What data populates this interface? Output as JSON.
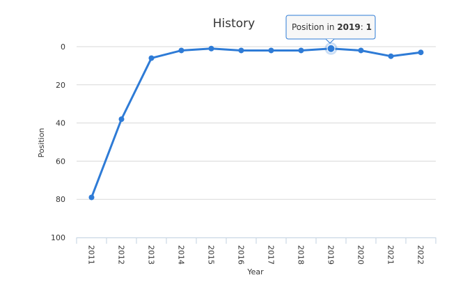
{
  "chart_data": {
    "type": "line",
    "title": "History",
    "xlabel": "Year",
    "ylabel": "Position",
    "categories": [
      "2011",
      "2012",
      "2013",
      "2014",
      "2015",
      "2016",
      "2017",
      "2018",
      "2019",
      "2020",
      "2021",
      "2022"
    ],
    "series": [
      {
        "values": [
          79,
          38,
          6,
          2,
          1,
          2,
          2,
          2,
          1,
          2,
          5,
          3
        ],
        "color": "#2e7bd6"
      }
    ],
    "ylim": [
      0,
      100
    ],
    "y_reversed": true,
    "yticks": [
      "0",
      "20",
      "40",
      "60",
      "80",
      "100"
    ],
    "grid": true,
    "tooltip": {
      "prefix": "Position in ",
      "year": "2019",
      "separator": ": ",
      "value": "1",
      "highlight_index": 8
    }
  }
}
